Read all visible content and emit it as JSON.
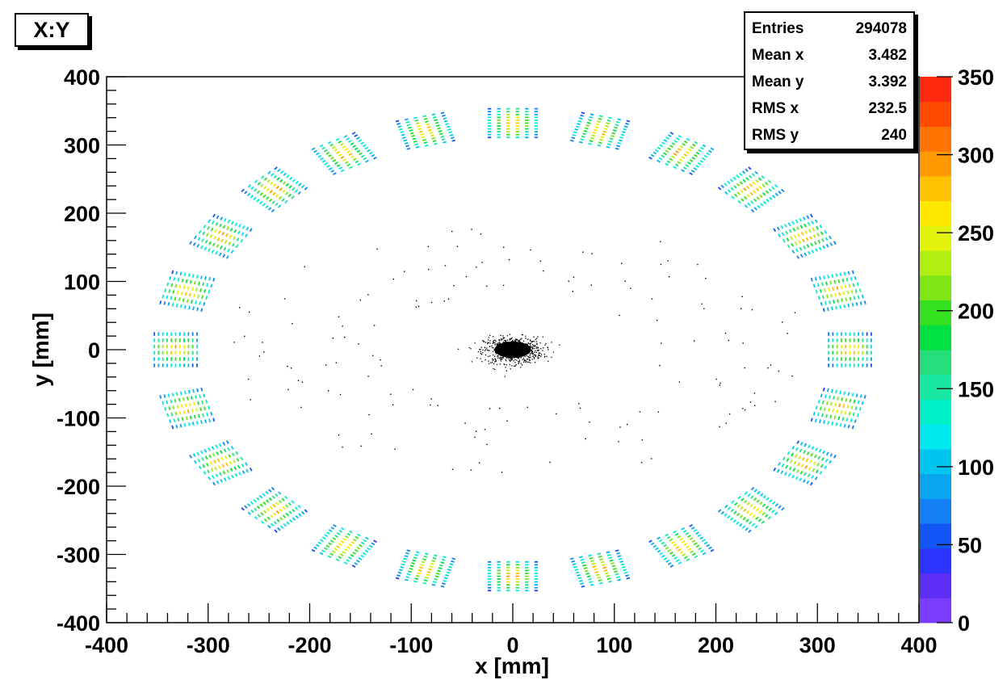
{
  "title": "X:Y",
  "stats": [
    {
      "label": "Entries",
      "value": "294078"
    },
    {
      "label": "Mean x",
      "value": "3.482"
    },
    {
      "label": "Mean y",
      "value": "3.392"
    },
    {
      "label": "RMS x",
      "value": "232.5"
    },
    {
      "label": "RMS y",
      "value": "240"
    }
  ],
  "colors": {
    "palette": [
      "#7a3dff",
      "#5b2df5",
      "#2b35ff",
      "#1255f5",
      "#1380f5",
      "#0aa5f0",
      "#00c5f0",
      "#00e8f0",
      "#00f0c8",
      "#19e8a5",
      "#25e07a",
      "#00e040",
      "#35e020",
      "#80e515",
      "#b0ed10",
      "#e2f20a",
      "#ffe800",
      "#ffc000",
      "#ff9a00",
      "#ff7300",
      "#ff4a00",
      "#ff2a10"
    ],
    "central_spot": "#000000"
  },
  "chart_data": {
    "type": "scatter",
    "title": "X:Y",
    "xlabel": "x [mm]",
    "ylabel": "y [mm]",
    "xlim": [
      -400,
      400
    ],
    "ylim": [
      -400,
      400
    ],
    "xticks": [
      "-400",
      "-300",
      "-200",
      "-100",
      "0",
      "100",
      "200",
      "300",
      "400"
    ],
    "yticks": [
      "-400",
      "-300",
      "-200",
      "-100",
      "0",
      "100",
      "200",
      "300",
      "400"
    ],
    "colorbar": {
      "range": [
        0,
        350
      ],
      "ticks": [
        "0",
        "50",
        "100",
        "150",
        "200",
        "250",
        "300",
        "350"
      ]
    },
    "ring": {
      "modules": 24,
      "radius": 332,
      "module_width": 46,
      "module_depth": 42,
      "pixel_grid": [
        11,
        6
      ]
    },
    "central_spot": {
      "x": 0,
      "y": 0,
      "rms_x": 12,
      "rms_y": 8
    },
    "stats": {
      "entries": 294078,
      "mean_x": 3.482,
      "mean_y": 3.392,
      "rms_x": 232.5,
      "rms_y": 240
    }
  }
}
